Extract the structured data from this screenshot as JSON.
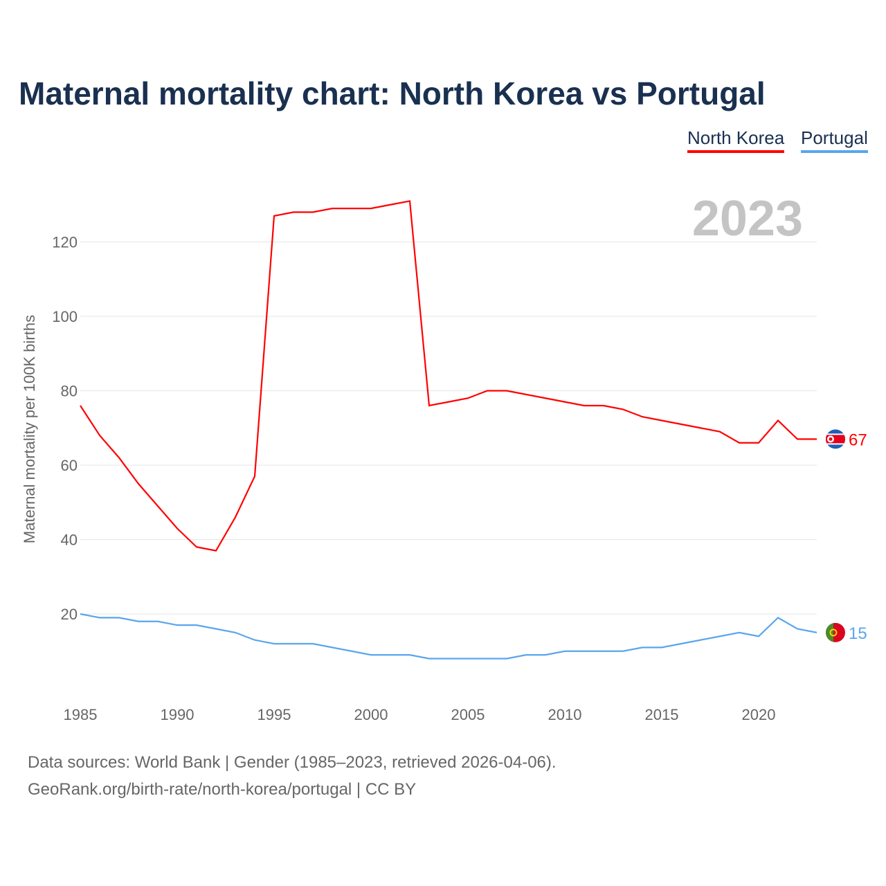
{
  "title": "Maternal mortality chart: North Korea vs Portugal",
  "year_label": "2023",
  "footer": {
    "line1": "Data sources: World Bank | Gender (1985–2023, retrieved 2026-04-06).",
    "line2": "GeoRank.org/birth-rate/north-korea/portugal | CC BY"
  },
  "chart_data": {
    "type": "line",
    "title": "Maternal mortality chart: North Korea vs Portugal",
    "ylabel": "Maternal mortality per 100K births",
    "xlabel": "",
    "xlim": [
      1985,
      2023
    ],
    "ylim": [
      0,
      135
    ],
    "xticks": [
      1985,
      1990,
      1995,
      2000,
      2005,
      2010,
      2015,
      2020
    ],
    "yticks": [
      20,
      40,
      60,
      80,
      100,
      120
    ],
    "grid": true,
    "legend_position": "top-right",
    "x": [
      1985,
      1986,
      1987,
      1988,
      1989,
      1990,
      1991,
      1992,
      1993,
      1994,
      1995,
      1996,
      1997,
      1998,
      1999,
      2000,
      2001,
      2002,
      2003,
      2004,
      2005,
      2006,
      2007,
      2008,
      2009,
      2010,
      2011,
      2012,
      2013,
      2014,
      2015,
      2016,
      2017,
      2018,
      2019,
      2020,
      2021,
      2022,
      2023
    ],
    "series": [
      {
        "name": "North Korea",
        "color": "#ff0000",
        "end_label": "67",
        "values": [
          76,
          68,
          62,
          55,
          49,
          43,
          38,
          37,
          46,
          57,
          127,
          128,
          128,
          129,
          129,
          129,
          130,
          131,
          76,
          77,
          78,
          80,
          80,
          79,
          78,
          77,
          76,
          76,
          75,
          73,
          72,
          71,
          70,
          69,
          66,
          66,
          72,
          67,
          67
        ]
      },
      {
        "name": "Portugal",
        "color": "#5aa5ec",
        "end_label": "15",
        "values": [
          20,
          19,
          19,
          18,
          18,
          17,
          17,
          16,
          15,
          13,
          12,
          12,
          12,
          11,
          10,
          9,
          9,
          9,
          8,
          8,
          8,
          8,
          8,
          9,
          9,
          10,
          10,
          10,
          10,
          11,
          11,
          12,
          13,
          14,
          15,
          14,
          19,
          16,
          15
        ]
      }
    ]
  }
}
